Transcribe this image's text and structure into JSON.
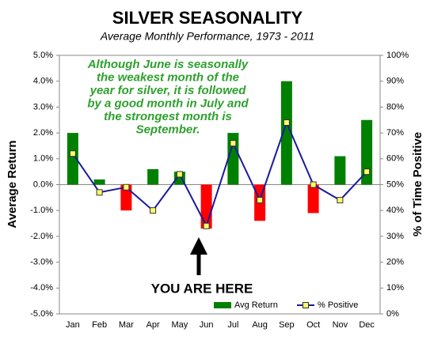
{
  "chart_data": {
    "type": "bar",
    "title": "SILVER SEASONALITY",
    "subtitle": "Average Monthly Performance, 1973 - 2011",
    "y_label": "Average Return",
    "y2_label": "% of Time Positive",
    "categories": [
      "Jan",
      "Feb",
      "Mar",
      "Apr",
      "May",
      "Jun",
      "Jul",
      "Aug",
      "Sep",
      "Oct",
      "Nov",
      "Dec"
    ],
    "series": [
      {
        "name": "Avg Return",
        "type": "bar",
        "color": "#008000",
        "negative_color": "#ff0000",
        "values": [
          2.0,
          0.2,
          -1.0,
          0.6,
          0.5,
          -1.7,
          2.0,
          -1.4,
          4.0,
          -1.1,
          1.1,
          2.5
        ]
      },
      {
        "name": "% Positive",
        "type": "line",
        "axis": "y2",
        "color": "#1a1a9c",
        "marker_color": "#ffff66",
        "values": [
          62,
          47,
          49,
          40,
          54,
          34,
          66,
          44,
          74,
          50,
          44,
          55
        ]
      }
    ],
    "ylim": [
      -5,
      5
    ],
    "yticks": [
      {
        "value": -5,
        "label": "-5.0%"
      },
      {
        "value": -4,
        "label": "-4.0%"
      },
      {
        "value": -3,
        "label": "-3.0%"
      },
      {
        "value": -2,
        "label": "-2.0%"
      },
      {
        "value": -1,
        "label": "-1.0%"
      },
      {
        "value": 0,
        "label": "0.0%"
      },
      {
        "value": 1,
        "label": "1.0%"
      },
      {
        "value": 2,
        "label": "2.0%"
      },
      {
        "value": 3,
        "label": "3.0%"
      },
      {
        "value": 4,
        "label": "4.0%"
      },
      {
        "value": 5,
        "label": "5.0%"
      }
    ],
    "y2lim": [
      0,
      100
    ],
    "y2ticks": [
      {
        "value": 0,
        "label": "0%"
      },
      {
        "value": 10,
        "label": "10%"
      },
      {
        "value": 20,
        "label": "20%"
      },
      {
        "value": 30,
        "label": "30%"
      },
      {
        "value": 40,
        "label": "40%"
      },
      {
        "value": 50,
        "label": "50%"
      },
      {
        "value": 60,
        "label": "60%"
      },
      {
        "value": 70,
        "label": "70%"
      },
      {
        "value": 80,
        "label": "80%"
      },
      {
        "value": 90,
        "label": "90%"
      },
      {
        "value": 100,
        "label": "100%"
      }
    ],
    "grid": false,
    "legend": "bottom-right",
    "annotation_lines": [
      "Although June is seasonally",
      "the weakest month of the",
      "year for silver, it is followed",
      "by a good month in July and",
      "the  strongest month is",
      "September."
    ],
    "annotation_color": "#2ea02e",
    "pointer_text": "YOU ARE HERE"
  }
}
